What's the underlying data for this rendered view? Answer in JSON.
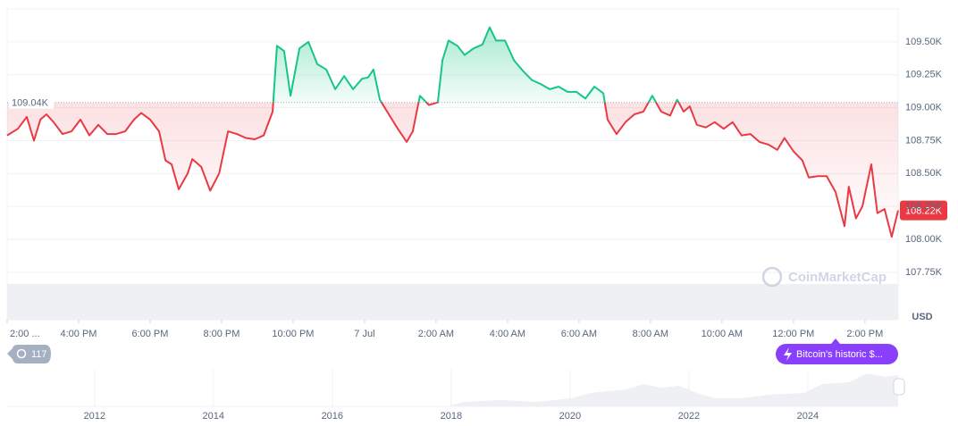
{
  "chart_data": {
    "type": "line",
    "x": [
      0,
      0.3,
      0.55,
      0.75,
      0.93,
      1.1,
      1.3,
      1.55,
      1.8,
      2.05,
      2.3,
      2.55,
      2.8,
      3.05,
      3.3,
      3.55,
      3.75,
      4,
      4.25,
      4.43,
      4.6,
      4.8,
      5.05,
      5.18,
      5.43,
      5.68,
      5.93,
      6.18,
      6.43,
      6.68,
      6.93,
      7.18,
      7.43,
      7.55,
      7.75,
      7.93,
      8.18,
      8.43,
      8.68,
      8.93,
      9.18,
      9.43,
      9.68,
      9.93,
      10.1,
      10.25,
      10.43,
      10.68,
      10.93,
      11.18,
      11.35,
      11.55,
      11.8,
      12.05,
      12.18,
      12.35,
      12.6,
      12.8,
      13.05,
      13.3,
      13.5,
      13.68,
      13.93,
      14.18,
      14.43,
      14.68,
      14.93,
      15.18,
      15.43,
      15.68,
      15.93,
      16.18,
      16.43,
      16.68,
      16.8,
      17.05,
      17.3,
      17.55,
      17.8,
      18.05,
      18.3,
      18.55,
      18.75,
      18.93,
      19.1,
      19.3,
      19.55,
      19.8,
      20.05,
      20.3,
      20.55,
      20.8,
      21.05,
      21.3,
      21.55,
      21.75,
      22,
      22.25,
      22.43,
      22.68,
      22.93,
      23.18,
      23.43,
      23.55,
      23.75,
      23.93,
      24.18,
      24.35,
      24.55,
      24.75,
      24.93
    ],
    "values": [
      108.79,
      108.84,
      108.93,
      108.75,
      108.91,
      108.95,
      108.89,
      108.8,
      108.82,
      108.91,
      108.79,
      108.87,
      108.8,
      108.8,
      108.82,
      108.91,
      108.96,
      108.91,
      108.82,
      108.6,
      108.57,
      108.38,
      108.5,
      108.61,
      108.55,
      108.37,
      108.5,
      108.82,
      108.8,
      108.77,
      108.76,
      108.79,
      108.97,
      109.47,
      109.43,
      109.09,
      109.45,
      109.5,
      109.33,
      109.29,
      109.14,
      109.24,
      109.14,
      109.22,
      109.23,
      109.29,
      109.06,
      108.95,
      108.84,
      108.74,
      108.82,
      109.09,
      109.02,
      109.04,
      109.36,
      109.51,
      109.47,
      109.4,
      109.45,
      109.48,
      109.61,
      109.51,
      109.51,
      109.36,
      109.28,
      109.21,
      109.18,
      109.14,
      109.16,
      109.12,
      109.12,
      109.07,
      109.16,
      109.11,
      108.91,
      108.8,
      108.89,
      108.95,
      108.97,
      109.09,
      108.97,
      108.94,
      109.06,
      108.97,
      109.01,
      108.87,
      108.85,
      108.89,
      108.84,
      108.89,
      108.79,
      108.8,
      108.74,
      108.72,
      108.68,
      108.77,
      108.67,
      108.6,
      108.47,
      108.48,
      108.48,
      108.36,
      108.1,
      108.4,
      108.16,
      108.25,
      108.57,
      108.2,
      108.23,
      108.02,
      108.22
    ],
    "xlim": [
      0,
      24.93
    ],
    "xticks": [
      {
        "value": 0,
        "label": "2:00 ..."
      },
      {
        "value": 2,
        "label": "4:00 PM"
      },
      {
        "value": 4,
        "label": "6:00 PM"
      },
      {
        "value": 6,
        "label": "8:00 PM"
      },
      {
        "value": 8,
        "label": "10:00 PM"
      },
      {
        "value": 10,
        "label": "7 Jul"
      },
      {
        "value": 12,
        "label": "2:00 AM"
      },
      {
        "value": 14,
        "label": "4:00 AM"
      },
      {
        "value": 16,
        "label": "6:00 AM"
      },
      {
        "value": 18,
        "label": "8:00 AM"
      },
      {
        "value": 20,
        "label": "10:00 AM"
      },
      {
        "value": 22,
        "label": "12:00 PM"
      },
      {
        "value": 24,
        "label": "2:00 PM"
      }
    ],
    "ylim": [
      107.39,
      109.75
    ],
    "yticks": [
      {
        "value": 109.5,
        "label": "109.50K"
      },
      {
        "value": 109.25,
        "label": "109.25K"
      },
      {
        "value": 109,
        "label": "109.00K"
      },
      {
        "value": 108.75,
        "label": "108.75K"
      },
      {
        "value": 108.5,
        "label": "108.50K"
      },
      {
        "value": 108.25,
        "label": "108.25K"
      },
      {
        "value": 108,
        "label": "108.00K"
      },
      {
        "value": 107.75,
        "label": "107.75K"
      }
    ],
    "baseline": {
      "value": 109.04,
      "label": "109.04K"
    },
    "last_price": {
      "value": 108.22,
      "label": "108.22K"
    },
    "up_color": "#16c784",
    "down_color": "#ea3943",
    "grid": true,
    "currency": "USD"
  },
  "navigator": {
    "xlim": [
      2010.53,
      2025.52
    ],
    "xticks": [
      2012,
      2014,
      2016,
      2018,
      2020,
      2022,
      2024
    ]
  },
  "ui": {
    "watermark": "CoinMarketCap",
    "events_count": "117",
    "event_label": "Bitcoin's historic $..."
  }
}
